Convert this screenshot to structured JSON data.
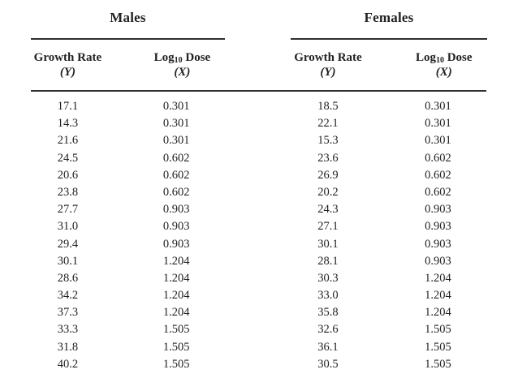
{
  "colors": {
    "text": "#222222",
    "rule": "#2f2f2f",
    "background": "#ffffff"
  },
  "males": {
    "title": "Males",
    "columns": {
      "growth_rate": {
        "label": "Growth Rate",
        "variable": "(Y)"
      },
      "dose": {
        "label_pre": "Log",
        "label_sub": "10",
        "label_post": " Dose",
        "variable": "(X)"
      }
    },
    "rows": [
      {
        "growth_rate": "17.1",
        "dose": "0.301"
      },
      {
        "growth_rate": "14.3",
        "dose": "0.301"
      },
      {
        "growth_rate": "21.6",
        "dose": "0.301"
      },
      {
        "growth_rate": "24.5",
        "dose": "0.602"
      },
      {
        "growth_rate": "20.6",
        "dose": "0.602"
      },
      {
        "growth_rate": "23.8",
        "dose": "0.602"
      },
      {
        "growth_rate": "27.7",
        "dose": "0.903"
      },
      {
        "growth_rate": "31.0",
        "dose": "0.903"
      },
      {
        "growth_rate": "29.4",
        "dose": "0.903"
      },
      {
        "growth_rate": "30.1",
        "dose": "1.204"
      },
      {
        "growth_rate": "28.6",
        "dose": "1.204"
      },
      {
        "growth_rate": "34.2",
        "dose": "1.204"
      },
      {
        "growth_rate": "37.3",
        "dose": "1.204"
      },
      {
        "growth_rate": "33.3",
        "dose": "1.505"
      },
      {
        "growth_rate": "31.8",
        "dose": "1.505"
      },
      {
        "growth_rate": "40.2",
        "dose": "1.505"
      }
    ]
  },
  "females": {
    "title": "Females",
    "columns": {
      "growth_rate": {
        "label": "Growth Rate",
        "variable": "(Y)"
      },
      "dose": {
        "label_pre": "Log",
        "label_sub": "10",
        "label_post": " Dose",
        "variable": "(X)"
      }
    },
    "rows": [
      {
        "growth_rate": "18.5",
        "dose": "0.301"
      },
      {
        "growth_rate": "22.1",
        "dose": "0.301"
      },
      {
        "growth_rate": "15.3",
        "dose": "0.301"
      },
      {
        "growth_rate": "23.6",
        "dose": "0.602"
      },
      {
        "growth_rate": "26.9",
        "dose": "0.602"
      },
      {
        "growth_rate": "20.2",
        "dose": "0.602"
      },
      {
        "growth_rate": "24.3",
        "dose": "0.903"
      },
      {
        "growth_rate": "27.1",
        "dose": "0.903"
      },
      {
        "growth_rate": "30.1",
        "dose": "0.903"
      },
      {
        "growth_rate": "28.1",
        "dose": "0.903"
      },
      {
        "growth_rate": "30.3",
        "dose": "1.204"
      },
      {
        "growth_rate": "33.0",
        "dose": "1.204"
      },
      {
        "growth_rate": "35.8",
        "dose": "1.204"
      },
      {
        "growth_rate": "32.6",
        "dose": "1.505"
      },
      {
        "growth_rate": "36.1",
        "dose": "1.505"
      },
      {
        "growth_rate": "30.5",
        "dose": "1.505"
      }
    ]
  }
}
